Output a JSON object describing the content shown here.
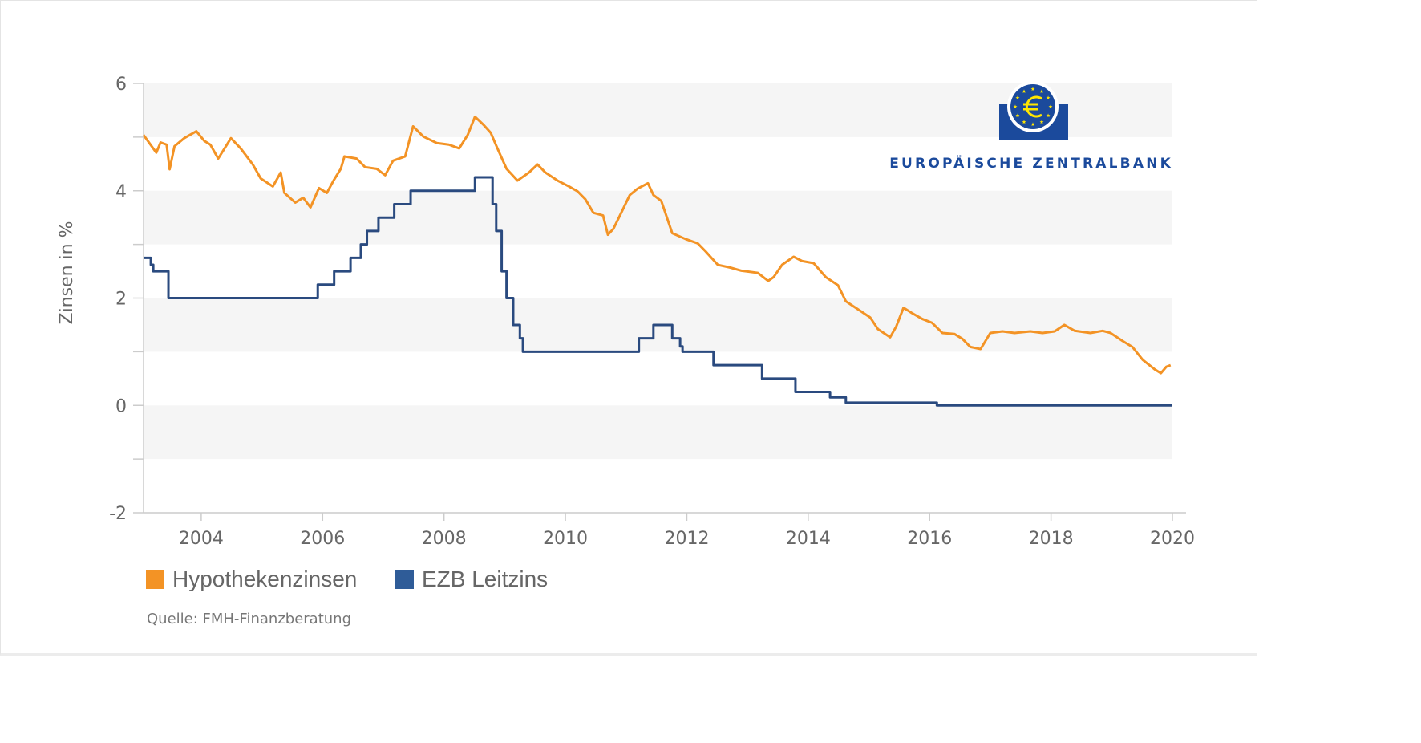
{
  "logo": {
    "text": "EUROPÄISCHE ZENTRALBANK",
    "color": "#1b4a9c",
    "symbol_color": "#ffe600"
  },
  "source": "Quelle: FMH-Finanzberatung",
  "chart_data": {
    "type": "line",
    "title": "",
    "xlabel": "",
    "ylabel": "Zinsen in %",
    "xlim": [
      2003.05,
      2020.0
    ],
    "ylim": [
      -2,
      6
    ],
    "xticks": [
      "2004",
      "2006",
      "2008",
      "2010",
      "2012",
      "2014",
      "2016",
      "2018",
      "2020"
    ],
    "yticks": [
      "6",
      "4",
      "2",
      "0",
      "-2"
    ],
    "grid": "alternating horizontal bands",
    "legend": "bottom-left",
    "series": [
      {
        "name": "Hypothekenzinsen",
        "color": "#f39325",
        "step": false,
        "x": [
          2003.05,
          2003.26,
          2003.33,
          2003.43,
          2003.48,
          2003.56,
          2003.72,
          2003.92,
          2004.05,
          2004.15,
          2004.28,
          2004.49,
          2004.65,
          2004.85,
          2004.98,
          2005.18,
          2005.31,
          2005.37,
          2005.55,
          2005.68,
          2005.8,
          2005.94,
          2006.07,
          2006.18,
          2006.3,
          2006.36,
          2006.56,
          2006.7,
          2006.89,
          2007.03,
          2007.16,
          2007.36,
          2007.49,
          2007.66,
          2007.88,
          2008.08,
          2008.25,
          2008.39,
          2008.51,
          2008.65,
          2008.77,
          2008.88,
          2009.03,
          2009.21,
          2009.4,
          2009.54,
          2009.67,
          2009.87,
          2010.06,
          2010.2,
          2010.33,
          2010.46,
          2010.62,
          2010.7,
          2010.79,
          2010.92,
          2011.06,
          2011.19,
          2011.36,
          2011.45,
          2011.58,
          2011.76,
          2011.98,
          2012.18,
          2012.31,
          2012.51,
          2012.71,
          2012.9,
          2013.17,
          2013.34,
          2013.43,
          2013.57,
          2013.76,
          2013.9,
          2014.09,
          2014.29,
          2014.49,
          2014.62,
          2014.82,
          2015.02,
          2015.15,
          2015.35,
          2015.45,
          2015.57,
          2015.71,
          2015.88,
          2016.04,
          2016.21,
          2016.41,
          2016.54,
          2016.67,
          2016.84,
          2017.0,
          2017.2,
          2017.4,
          2017.66,
          2017.86,
          2018.06,
          2018.22,
          2018.39,
          2018.65,
          2018.85,
          2018.98,
          2019.18,
          2019.34,
          2019.51,
          2019.71,
          2019.81,
          2019.9,
          2019.97
        ],
        "values": [
          5.04,
          4.71,
          4.9,
          4.86,
          4.4,
          4.83,
          4.98,
          5.11,
          4.93,
          4.86,
          4.6,
          4.98,
          4.79,
          4.49,
          4.23,
          4.08,
          4.34,
          3.96,
          3.78,
          3.87,
          3.69,
          4.05,
          3.96,
          4.19,
          4.41,
          4.64,
          4.6,
          4.44,
          4.41,
          4.29,
          4.56,
          4.64,
          5.2,
          5.01,
          4.89,
          4.86,
          4.79,
          5.04,
          5.38,
          5.23,
          5.08,
          4.79,
          4.41,
          4.19,
          4.34,
          4.49,
          4.34,
          4.19,
          4.08,
          3.99,
          3.84,
          3.59,
          3.54,
          3.18,
          3.29,
          3.59,
          3.92,
          4.04,
          4.14,
          3.92,
          3.81,
          3.21,
          3.1,
          3.02,
          2.87,
          2.62,
          2.57,
          2.51,
          2.47,
          2.32,
          2.39,
          2.62,
          2.77,
          2.69,
          2.65,
          2.39,
          2.24,
          1.94,
          1.79,
          1.64,
          1.42,
          1.27,
          1.47,
          1.82,
          1.72,
          1.61,
          1.54,
          1.35,
          1.33,
          1.24,
          1.09,
          1.05,
          1.35,
          1.38,
          1.35,
          1.38,
          1.35,
          1.38,
          1.5,
          1.39,
          1.35,
          1.39,
          1.35,
          1.2,
          1.09,
          0.85,
          0.67,
          0.6,
          0.72,
          0.75
        ]
      },
      {
        "name": "EZB Leitzins",
        "color": "#2a4a7f",
        "step": true,
        "x": [
          2003.05,
          2003.17,
          2003.21,
          2003.46,
          2005.92,
          2006.19,
          2006.46,
          2006.63,
          2006.73,
          2006.92,
          2007.18,
          2007.45,
          2008.51,
          2008.8,
          2008.86,
          2008.95,
          2009.03,
          2009.14,
          2009.25,
          2009.3,
          2011.21,
          2011.45,
          2011.76,
          2011.89,
          2011.93,
          2012.44,
          2013.24,
          2013.79,
          2014.36,
          2014.62,
          2016.12,
          2020.0
        ],
        "values": [
          2.75,
          2.62,
          2.5,
          2.0,
          2.25,
          2.5,
          2.75,
          3.0,
          3.25,
          3.5,
          3.75,
          4.0,
          4.25,
          3.75,
          3.25,
          2.5,
          2.0,
          1.5,
          1.25,
          1.0,
          1.25,
          1.5,
          1.25,
          1.1,
          1.0,
          0.75,
          0.5,
          0.25,
          0.15,
          0.05,
          0.0,
          0.0
        ]
      }
    ]
  }
}
